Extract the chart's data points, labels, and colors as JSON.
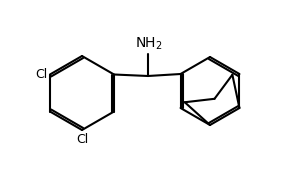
{
  "bg_color": "#ffffff",
  "line_color": "#000000",
  "line_width": 1.5,
  "font_size": 9
}
